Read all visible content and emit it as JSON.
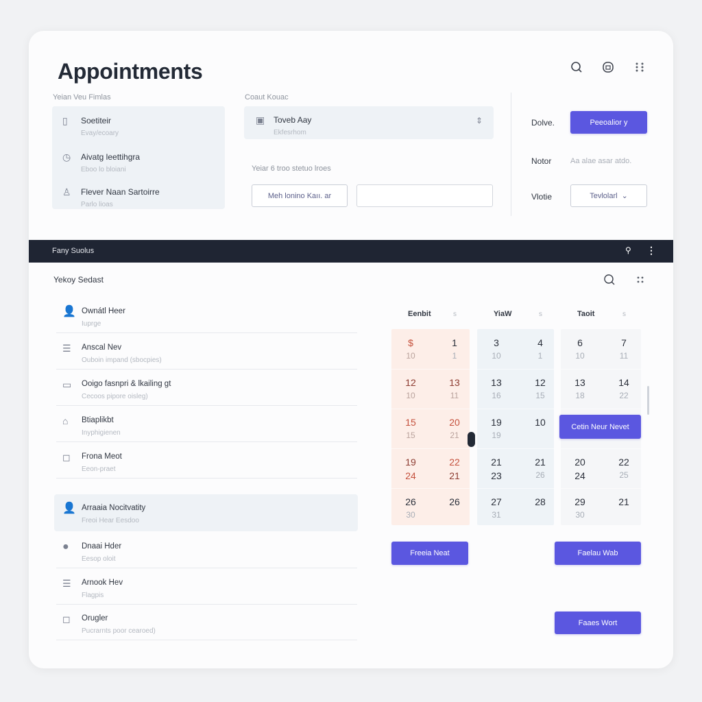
{
  "header": {
    "title": "Appointments",
    "icons": [
      "search-icon",
      "lock-icon",
      "grid-icon"
    ]
  },
  "left_panel": {
    "label": "Yeian Veu Fimlas",
    "items": [
      {
        "title": "Soetiteir",
        "sub": "Evay/ecoary",
        "icon": "calendar-icon"
      },
      {
        "title": "Aivatg leettihgra",
        "sub": "Eboo lo bloiani",
        "icon": "clock-icon"
      },
      {
        "title": "Flever Naan Sartoirre",
        "sub": "Parlo lioas",
        "icon": "person-icon"
      }
    ]
  },
  "middle_panel": {
    "label": "Coaut Kouac",
    "box_title": "Toveb Aay",
    "box_sub": "Ekfesrhom",
    "hint": "Yeiar 6 troo stetuo lroes",
    "outline_button": "Meh lonino Kaıı. ar",
    "input_value": ""
  },
  "right_panel": {
    "row1_label": "Dolve.",
    "row1_button": "Peeoalior y",
    "row2_label": "Notor",
    "row2_value": "Aa alae asar atdo.",
    "row3_label": "Vlotie",
    "row3_select": "Tevlolarl"
  },
  "bar": {
    "title": "Fany Suolus"
  },
  "section": {
    "title": "Yekoy Sedast"
  },
  "list": [
    {
      "title": "Ownátl Heer",
      "sub": "Iuprge",
      "icon": "user-icon"
    },
    {
      "title": "Anscal Nev",
      "sub": "Ouboin impand (sbocpies)",
      "icon": "document-icon"
    },
    {
      "title": "Ooigo fasnpri & lkailing gt",
      "sub": "Cecoos pipore oisleg)",
      "icon": "monitor-icon"
    },
    {
      "title": "Btiaplikbt",
      "sub": "Inyphigienen",
      "icon": "folder-icon"
    },
    {
      "title": "Frona Meot",
      "sub": "Eeon-praet",
      "icon": "chat-icon"
    },
    {
      "title": "Arraaia Nocitvatity",
      "sub": "Freoi Hear Eesdoo",
      "icon": "user-icon",
      "selected": true
    },
    {
      "title": "Dnaai Hder",
      "sub": "Eesop oloit",
      "icon": "avatar-icon"
    },
    {
      "title": "Arnook Hev",
      "sub": "Flagpis",
      "icon": "document-icon"
    },
    {
      "title": "Orugler",
      "sub": "Pucrarnts poor cearoed)",
      "icon": "chat-icon"
    }
  ],
  "calendar": {
    "headers": [
      {
        "name": "Eenbit",
        "mark": "s"
      },
      {
        "name": "YiaW",
        "mark": "s"
      },
      {
        "name": "Taoit",
        "mark": "s"
      }
    ],
    "colors": {
      "peach": "#fdeee8",
      "blue": "#eef3f7",
      "gray": "#f5f6f8",
      "accent": "#5b57e0",
      "red": "#c4503c",
      "darkred": "#8c3b30"
    },
    "rows": [
      [
        [
          "$",
          "10",
          "red"
        ],
        [
          "1",
          "1",
          "dark"
        ],
        [
          "3",
          "10",
          "dark"
        ],
        [
          "4",
          "1",
          "dark"
        ],
        [
          "6",
          "10",
          "dark"
        ],
        [
          "7",
          "11",
          "dark"
        ]
      ],
      [
        [
          "12",
          "10",
          "darkred"
        ],
        [
          "13",
          "11",
          "darkred"
        ],
        [
          "13",
          "16",
          "dark"
        ],
        [
          "12",
          "15",
          "dark"
        ],
        [
          "13",
          "18",
          "dark"
        ],
        [
          "14",
          "22",
          "dark"
        ]
      ],
      [
        [
          "15",
          "15",
          "red"
        ],
        [
          "20",
          "21",
          "red"
        ],
        [
          "19",
          "19",
          "dark"
        ],
        [
          "10",
          "",
          "dark"
        ],
        null,
        null
      ],
      [
        [
          "19",
          "24",
          "darkred",
          "red"
        ],
        [
          "22",
          "21",
          "red",
          "darkred"
        ],
        [
          "21",
          "23",
          "dark",
          "dark"
        ],
        [
          "21",
          "26",
          "dark"
        ],
        [
          "20",
          "24",
          "dark",
          "dark"
        ],
        [
          "22",
          "25",
          "dark"
        ]
      ],
      [
        [
          "26",
          "30",
          "dark"
        ],
        [
          "26",
          "",
          "dark"
        ],
        [
          "27",
          "31",
          "dark"
        ],
        [
          "28",
          "",
          "dark"
        ],
        [
          "29",
          "30",
          "dark"
        ],
        [
          "21",
          "",
          "dark"
        ]
      ]
    ],
    "event_button": "Cetin Neur Nevet"
  },
  "buttons": {
    "b1": "Freeia Neat",
    "b2": "Faelau Wab",
    "b3": "Faaes Wort"
  }
}
